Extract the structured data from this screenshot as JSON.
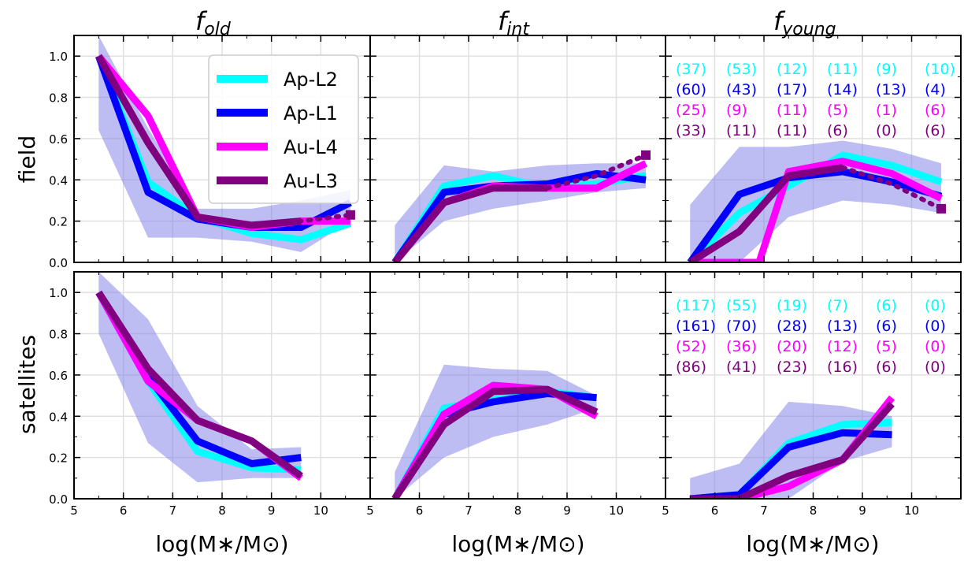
{
  "figure": {
    "column_titles": [
      {
        "main": "f",
        "sub": "old"
      },
      {
        "main": "f",
        "sub": "int"
      },
      {
        "main": "f",
        "sub": "young"
      }
    ],
    "row_titles": [
      "field",
      "satellites"
    ],
    "x_axis_label": "log(M∗/M⊙)"
  },
  "legend": {
    "placement": "top-right of first panel",
    "entries": [
      {
        "name": "Ap-L2",
        "color": "#00ffff"
      },
      {
        "name": "Ap-L1",
        "color": "#0000ff"
      },
      {
        "name": "Au-L4",
        "color": "#ff00ff"
      },
      {
        "name": "Au-L3",
        "color": "#800080"
      }
    ]
  },
  "colors": {
    "Ap-L2": "#00ffff",
    "Ap-L1": "#0000ff",
    "Au-L4": "#ff00ff",
    "Au-L3": "#800080",
    "band": "#7b7be8",
    "grid": "#e0e0e0"
  },
  "chart_data": [
    {
      "type": "line",
      "panel": "field-old",
      "xlim": [
        5,
        11
      ],
      "ylim": [
        0,
        1.1
      ],
      "xticks": [
        5,
        6,
        7,
        8,
        9,
        10
      ],
      "yticks": [
        0.0,
        0.2,
        0.4,
        0.6,
        0.8,
        1.0
      ],
      "grid": true,
      "band": {
        "x": [
          5.5,
          6.5,
          7.5,
          8.6,
          9.6,
          10.6
        ],
        "lower": [
          0.64,
          0.12,
          0.12,
          0.1,
          0.05,
          0.2
        ],
        "upper": [
          1.1,
          0.65,
          0.26,
          0.26,
          0.3,
          0.35
        ]
      },
      "series": [
        {
          "name": "Ap-L2",
          "x": [
            5.5,
            6.5,
            7.5,
            8.6,
            9.6,
            10.6
          ],
          "y": [
            1.0,
            0.39,
            0.22,
            0.14,
            0.11,
            0.19
          ]
        },
        {
          "name": "Ap-L1",
          "x": [
            5.5,
            6.5,
            7.5,
            8.6,
            9.6,
            10.6
          ],
          "y": [
            1.0,
            0.34,
            0.21,
            0.17,
            0.17,
            0.29
          ]
        },
        {
          "name": "Au-L4",
          "x": [
            5.5,
            6.5,
            7.5,
            8.6,
            9.6,
            10.6
          ],
          "y": [
            1.0,
            0.71,
            0.22,
            0.17,
            0.2,
            0.2
          ]
        },
        {
          "name": "Au-L3",
          "x": [
            5.5,
            6.5,
            7.5,
            8.6,
            9.6
          ],
          "y": [
            1.0,
            0.58,
            0.22,
            0.18,
            0.2
          ],
          "dotted_x": [
            8.6,
            9.6,
            10.6
          ],
          "dotted_y": [
            0.18,
            0.2,
            0.23
          ],
          "end_marker": true
        }
      ]
    },
    {
      "type": "line",
      "panel": "field-int",
      "xlim": [
        5,
        11
      ],
      "ylim": [
        0,
        1.1
      ],
      "xticks": [
        5,
        6,
        7,
        8,
        9,
        10
      ],
      "yticks": [
        0.0,
        0.2,
        0.4,
        0.6,
        0.8,
        1.0
      ],
      "grid": true,
      "band": {
        "x": [
          5.5,
          6.5,
          7.5,
          8.6,
          9.6,
          10.6
        ],
        "lower": [
          0.0,
          0.2,
          0.26,
          0.3,
          0.34,
          0.36
        ],
        "upper": [
          0.18,
          0.47,
          0.44,
          0.47,
          0.48,
          0.48
        ]
      },
      "series": [
        {
          "name": "Ap-L2",
          "x": [
            5.5,
            6.5,
            7.5,
            8.6,
            9.6,
            10.6
          ],
          "y": [
            0.0,
            0.37,
            0.42,
            0.36,
            0.38,
            0.42
          ]
        },
        {
          "name": "Ap-L1",
          "x": [
            5.5,
            6.5,
            7.5,
            8.6,
            9.6,
            10.6
          ],
          "y": [
            0.0,
            0.34,
            0.37,
            0.38,
            0.43,
            0.4
          ]
        },
        {
          "name": "Au-L4",
          "x": [
            5.5,
            6.5,
            7.5,
            8.6,
            9.6,
            10.6
          ],
          "y": [
            0.0,
            0.29,
            0.37,
            0.36,
            0.36,
            0.48
          ]
        },
        {
          "name": "Au-L3",
          "x": [
            5.5,
            6.5,
            7.5,
            8.6
          ],
          "y": [
            0.0,
            0.29,
            0.36,
            0.36
          ],
          "dotted_x": [
            8.6,
            9.6,
            10.6
          ],
          "dotted_y": [
            0.36,
            0.42,
            0.52
          ],
          "end_marker": true
        }
      ]
    },
    {
      "type": "line",
      "panel": "field-young",
      "xlim": [
        5,
        11
      ],
      "ylim": [
        0,
        1.1
      ],
      "xticks": [
        5,
        6,
        7,
        8,
        9,
        10
      ],
      "yticks": [
        0.0,
        0.2,
        0.4,
        0.6,
        0.8,
        1.0
      ],
      "grid": true,
      "band": {
        "x": [
          5.5,
          6.5,
          7.5,
          8.6,
          9.6,
          10.6
        ],
        "lower": [
          0.0,
          0.0,
          0.22,
          0.3,
          0.28,
          0.24
        ],
        "upper": [
          0.28,
          0.56,
          0.56,
          0.59,
          0.55,
          0.48
        ]
      },
      "series": [
        {
          "name": "Ap-L2",
          "x": [
            5.5,
            6.5,
            7.5,
            8.6,
            9.6,
            10.6
          ],
          "y": [
            0.0,
            0.24,
            0.37,
            0.52,
            0.47,
            0.39
          ]
        },
        {
          "name": "Ap-L1",
          "x": [
            5.5,
            6.5,
            7.5,
            8.6,
            9.6,
            10.6
          ],
          "y": [
            0.0,
            0.33,
            0.41,
            0.44,
            0.39,
            0.32
          ]
        },
        {
          "name": "Au-L4",
          "x": [
            5.5,
            6.5,
            6.9,
            7.5,
            8.6,
            9.6,
            10.6
          ],
          "y": [
            0.0,
            0.0,
            0.0,
            0.44,
            0.49,
            0.43,
            0.31
          ]
        },
        {
          "name": "Au-L3",
          "x": [
            5.5,
            6.5,
            7.5,
            8.6
          ],
          "y": [
            0.0,
            0.15,
            0.42,
            0.46
          ],
          "dotted_x": [
            8.6,
            9.6,
            10.6
          ],
          "dotted_y": [
            0.46,
            0.38,
            0.26
          ],
          "end_marker": true
        }
      ],
      "counts": [
        {
          "series": "Ap-L2",
          "values": [
            "(37)",
            "(53)",
            "(12)",
            "(11)",
            "(9)",
            "(10)"
          ]
        },
        {
          "series": "Ap-L1",
          "values": [
            "(60)",
            "(43)",
            "(17)",
            "(14)",
            "(13)",
            "(4)"
          ]
        },
        {
          "series": "Au-L4",
          "values": [
            "(25)",
            "(9)",
            "(11)",
            "(5)",
            "(1)",
            "(6)"
          ]
        },
        {
          "series": "Au-L3",
          "values": [
            "(33)",
            "(11)",
            "(11)",
            "(6)",
            "(0)",
            "(6)"
          ]
        }
      ]
    },
    {
      "type": "line",
      "panel": "satellites-old",
      "xlim": [
        5,
        11
      ],
      "ylim": [
        0,
        1.1
      ],
      "xticks": [
        5,
        6,
        7,
        8,
        9,
        10
      ],
      "yticks": [
        0.0,
        0.2,
        0.4,
        0.6,
        0.8,
        1.0
      ],
      "grid": true,
      "band": {
        "x": [
          5.5,
          6.5,
          7.5,
          8.6,
          9.6
        ],
        "lower": [
          0.8,
          0.27,
          0.08,
          0.1,
          0.1
        ],
        "upper": [
          1.1,
          0.87,
          0.45,
          0.24,
          0.25
        ]
      },
      "series": [
        {
          "name": "Ap-L2",
          "x": [
            5.5,
            6.5,
            7.5,
            8.6,
            9.6
          ],
          "y": [
            1.0,
            0.57,
            0.23,
            0.15,
            0.14
          ]
        },
        {
          "name": "Ap-L1",
          "x": [
            5.5,
            6.5,
            7.5,
            8.6,
            9.6
          ],
          "y": [
            1.0,
            0.59,
            0.28,
            0.17,
            0.2
          ]
        },
        {
          "name": "Au-L4",
          "x": [
            5.5,
            6.5,
            7.5,
            8.6,
            9.6
          ],
          "y": [
            1.0,
            0.57,
            0.38,
            0.28,
            0.1
          ]
        },
        {
          "name": "Au-L3",
          "x": [
            5.5,
            6.5,
            7.5,
            8.6,
            9.6
          ],
          "y": [
            1.0,
            0.63,
            0.38,
            0.28,
            0.11
          ]
        }
      ]
    },
    {
      "type": "line",
      "panel": "satellites-int",
      "xlim": [
        5,
        11
      ],
      "ylim": [
        0,
        1.1
      ],
      "xticks": [
        5,
        6,
        7,
        8,
        9,
        10
      ],
      "yticks": [
        0.0,
        0.2,
        0.4,
        0.6,
        0.8,
        1.0
      ],
      "grid": true,
      "band": {
        "x": [
          5.5,
          6.5,
          7.5,
          8.6,
          9.6
        ],
        "lower": [
          0.0,
          0.2,
          0.3,
          0.36,
          0.44
        ],
        "upper": [
          0.13,
          0.65,
          0.63,
          0.62,
          0.5
        ]
      },
      "series": [
        {
          "name": "Ap-L2",
          "x": [
            5.5,
            6.5,
            7.5,
            8.6,
            9.6
          ],
          "y": [
            0.0,
            0.44,
            0.48,
            0.52,
            0.49
          ]
        },
        {
          "name": "Ap-L1",
          "x": [
            5.5,
            6.5,
            7.5,
            8.6,
            9.6
          ],
          "y": [
            0.0,
            0.41,
            0.47,
            0.51,
            0.49
          ]
        },
        {
          "name": "Au-L4",
          "x": [
            5.5,
            6.5,
            7.5,
            8.6,
            9.6
          ],
          "y": [
            0.0,
            0.41,
            0.55,
            0.53,
            0.4
          ]
        },
        {
          "name": "Au-L3",
          "x": [
            5.5,
            6.5,
            7.5,
            8.6,
            9.6
          ],
          "y": [
            0.0,
            0.36,
            0.52,
            0.53,
            0.42
          ]
        }
      ]
    },
    {
      "type": "line",
      "panel": "satellites-young",
      "xlim": [
        5,
        11
      ],
      "ylim": [
        0,
        1.1
      ],
      "xticks": [
        5,
        6,
        7,
        8,
        9,
        10
      ],
      "yticks": [
        0.0,
        0.2,
        0.4,
        0.6,
        0.8,
        1.0
      ],
      "grid": true,
      "band": {
        "x": [
          5.5,
          6.5,
          7.5,
          8.6,
          9.6
        ],
        "lower": [
          0.0,
          0.0,
          0.0,
          0.18,
          0.25
        ],
        "upper": [
          0.1,
          0.17,
          0.47,
          0.45,
          0.4
        ]
      },
      "series": [
        {
          "name": "Ap-L2",
          "x": [
            5.5,
            6.5,
            7.5,
            8.6,
            9.6
          ],
          "y": [
            0.0,
            0.02,
            0.27,
            0.36,
            0.37
          ]
        },
        {
          "name": "Ap-L1",
          "x": [
            5.5,
            6.5,
            7.5,
            8.6,
            9.6
          ],
          "y": [
            0.0,
            0.02,
            0.25,
            0.32,
            0.31
          ]
        },
        {
          "name": "Au-L4",
          "x": [
            5.5,
            6.5,
            7.5,
            8.6,
            9.6
          ],
          "y": [
            0.0,
            0.0,
            0.06,
            0.19,
            0.49
          ]
        },
        {
          "name": "Au-L3",
          "x": [
            5.5,
            6.5,
            7.5,
            8.6,
            9.6
          ],
          "y": [
            0.0,
            0.0,
            0.11,
            0.19,
            0.46
          ]
        }
      ],
      "counts": [
        {
          "series": "Ap-L2",
          "values": [
            "(117)",
            "(55)",
            "(19)",
            "(7)",
            "(6)",
            "(0)"
          ]
        },
        {
          "series": "Ap-L1",
          "values": [
            "(161)",
            "(70)",
            "(28)",
            "(13)",
            "(6)",
            "(0)"
          ]
        },
        {
          "series": "Au-L4",
          "values": [
            "(52)",
            "(36)",
            "(20)",
            "(12)",
            "(5)",
            "(0)"
          ]
        },
        {
          "series": "Au-L3",
          "values": [
            "(86)",
            "(41)",
            "(23)",
            "(16)",
            "(6)",
            "(0)"
          ]
        }
      ]
    }
  ]
}
